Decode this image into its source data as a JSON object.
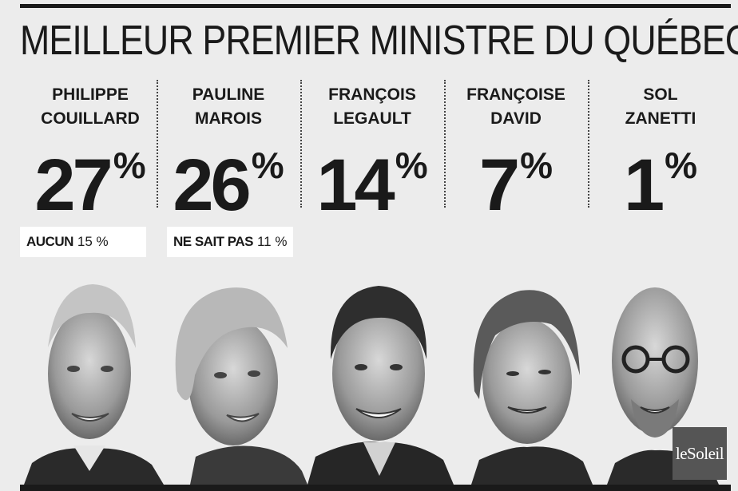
{
  "title": "MEILLEUR PREMIER MINISTRE DU QUÉBEC",
  "chart_data": {
    "type": "bar",
    "title": "MEILLEUR PREMIER MINISTRE DU QUÉBEC",
    "categories": [
      "PHILIPPE COUILLARD",
      "PAULINE MAROIS",
      "FRANÇOIS LEGAULT",
      "FRANÇOISE DAVID",
      "SOL ZANETTI"
    ],
    "values": [
      27,
      26,
      14,
      7,
      1
    ],
    "unit": "%",
    "others": [
      {
        "label": "AUCUN",
        "value": "15 %"
      },
      {
        "label": "NE SAIT PAS",
        "value": "11 %"
      }
    ]
  },
  "candidates": [
    {
      "name": "PHILIPPE\nCOUILLARD",
      "pct": "27",
      "sign": "%"
    },
    {
      "name": "PAULINE\nMAROIS",
      "pct": "26",
      "sign": "%"
    },
    {
      "name": "FRANÇOIS\nLEGAULT",
      "pct": "14",
      "sign": "%"
    },
    {
      "name": "FRANÇOISE\nDAVID",
      "pct": "7",
      "sign": "%"
    },
    {
      "name": "SOL\nZANETTI",
      "pct": "1",
      "sign": "%"
    }
  ],
  "others": [
    {
      "label": "AUCUN",
      "value": "15 %"
    },
    {
      "label": "NE SAIT PAS",
      "value": "11 %"
    }
  ],
  "logo": "leSoleil",
  "colors": {
    "background": "#ececec",
    "ink": "#1a1a1a",
    "box": "#ffffff"
  }
}
